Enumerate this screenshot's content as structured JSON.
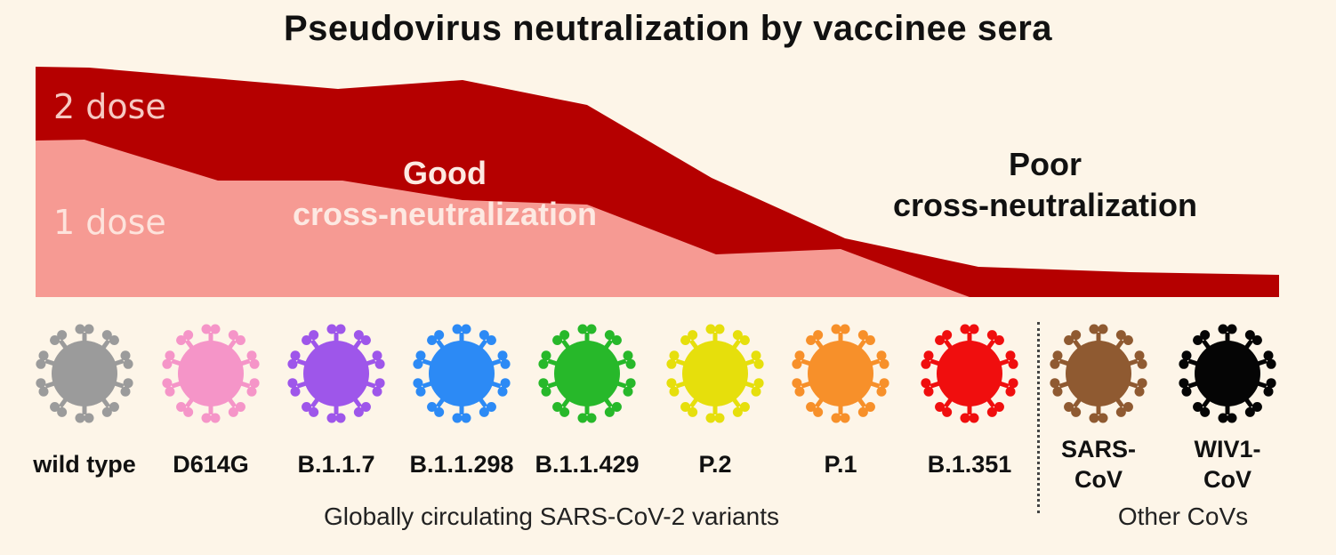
{
  "title": "Pseudovirus neutralization by vaccinee sera",
  "layers": {
    "two_dose": {
      "label": "2 dose",
      "color": "#b50000"
    },
    "one_dose": {
      "label": "1 dose",
      "color": "#f69a93"
    }
  },
  "annotations": {
    "good_line1": "Good",
    "good_line2": "cross-neutralization",
    "poor_line1": "Poor",
    "poor_line2": "cross-neutralization"
  },
  "variants": [
    {
      "label": "wild type",
      "color": "#9b9b9b"
    },
    {
      "label": "D614G",
      "color": "#f595c8"
    },
    {
      "label": "B.1.1.7",
      "color": "#9e56ea"
    },
    {
      "label": "B.1.1.298",
      "color": "#2c8af5"
    },
    {
      "label": "B.1.1.429",
      "color": "#27b82a"
    },
    {
      "label": "P.2",
      "color": "#e6df0c"
    },
    {
      "label": "P.1",
      "color": "#f7902a"
    },
    {
      "label": "B.1.351",
      "color": "#f00e0e"
    },
    {
      "label_lines": [
        "SARS-",
        "CoV"
      ],
      "color": "#8f5a31"
    },
    {
      "label_lines": [
        "WIV1-",
        "CoV"
      ],
      "color": "#050505"
    }
  ],
  "groups": {
    "main": "Globally circulating SARS-CoV-2 variants",
    "other": "Other CoVs"
  }
}
